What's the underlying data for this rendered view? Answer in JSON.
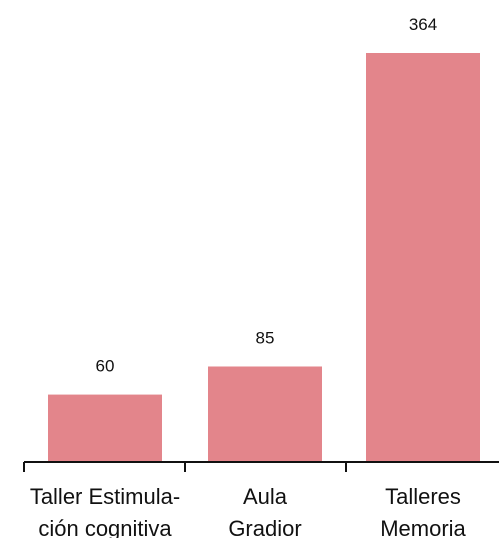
{
  "chart_data": {
    "type": "bar",
    "categories": [
      [
        "Taller Estimula-",
        "ción cognitiva"
      ],
      [
        "Aula",
        "Gradior"
      ],
      [
        "Talleres",
        "Memoria"
      ]
    ],
    "values": [
      60,
      85,
      364
    ],
    "value_labels": [
      "60",
      "85",
      "364"
    ],
    "title": "",
    "xlabel": "",
    "ylabel": "",
    "ylim": [
      0,
      364
    ],
    "grid": false,
    "legend": "none",
    "colors": {
      "bar": "#e3858b",
      "axis": "#111111",
      "text": "#111111"
    }
  }
}
